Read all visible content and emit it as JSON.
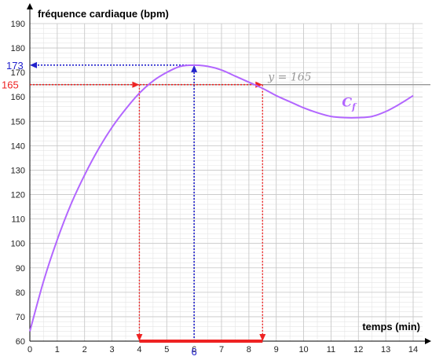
{
  "chart_data": {
    "type": "line",
    "title": "",
    "ylabel": "fréquence cardiaque (bpm)",
    "xlabel": "temps (min)",
    "xlim": [
      0,
      14
    ],
    "ylim": [
      60,
      190
    ],
    "x_ticks": [
      0,
      1,
      2,
      3,
      4,
      5,
      6,
      7,
      8,
      9,
      10,
      11,
      12,
      13,
      14
    ],
    "y_ticks": [
      60,
      70,
      80,
      90,
      100,
      110,
      120,
      130,
      140,
      150,
      160,
      170,
      180,
      190
    ],
    "grid": true,
    "minor_grid": true,
    "series": [
      {
        "name": "C_f",
        "color": "#b266ff",
        "x": [
          0,
          0.5,
          1,
          1.5,
          2,
          2.5,
          3,
          3.5,
          4,
          4.5,
          5,
          5.5,
          6,
          6.5,
          7,
          7.5,
          8,
          8.5,
          9,
          9.5,
          10,
          10.5,
          11,
          11.5,
          12,
          12.5,
          13,
          13.5,
          14
        ],
        "y": [
          64,
          84.5,
          101.5,
          116,
          128,
          138.5,
          147.5,
          155,
          161.5,
          166.5,
          170,
          172.5,
          173,
          172.5,
          171,
          168.5,
          166,
          163.5,
          160.5,
          158,
          155.5,
          153.5,
          152,
          151.5,
          151.5,
          152,
          154,
          157,
          160.5
        ]
      }
    ],
    "reference_line": {
      "y": 165,
      "label": "y = 165",
      "color": "#999999"
    },
    "curve_label": {
      "text": "C",
      "subscript": "f"
    },
    "annotations": [
      {
        "kind": "max",
        "x": 6,
        "y": 173,
        "x_label": "6",
        "y_label": "173",
        "color": "#2222cc"
      },
      {
        "kind": "threshold",
        "x1": 4,
        "x2": 8.5,
        "y": 165,
        "y_label": "165",
        "color": "#ee2222"
      }
    ],
    "interval": {
      "from": 4,
      "to": 8.5,
      "color": "#ee2222"
    }
  }
}
